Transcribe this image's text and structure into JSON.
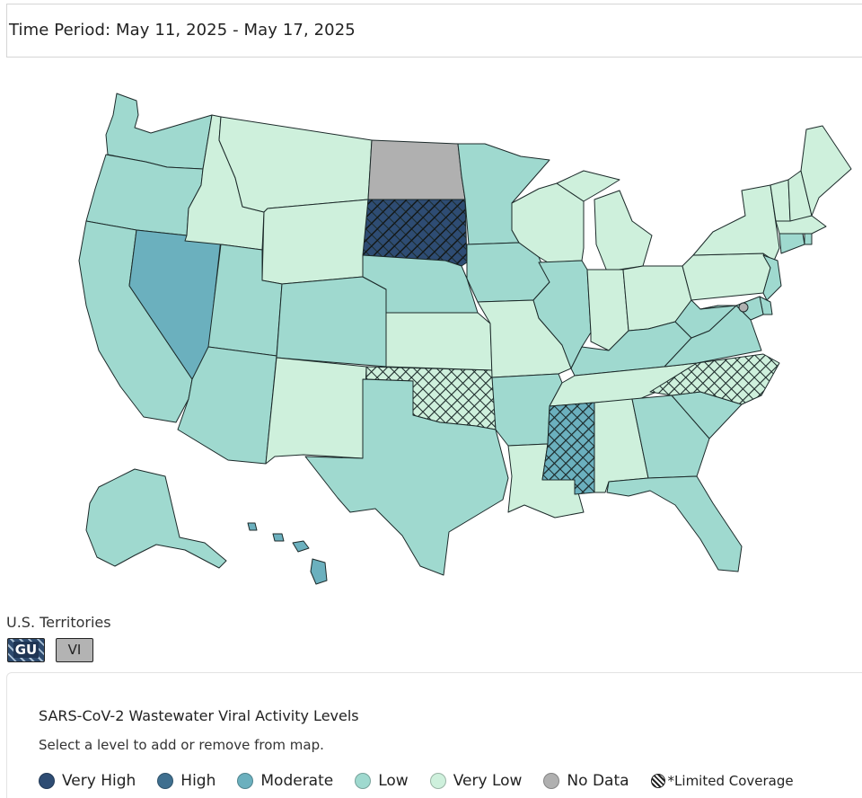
{
  "time_period": "Time Period: May 11, 2025 - May 17, 2025",
  "territories": {
    "label": "U.S. Territories",
    "items": [
      {
        "code": "GU",
        "level": "Very High",
        "limited_coverage": true
      },
      {
        "code": "VI",
        "level": "No Data",
        "limited_coverage": false
      }
    ]
  },
  "legend": {
    "title": "SARS-CoV-2 Wastewater Viral Activity Levels",
    "subtitle": "Select a level to add or remove from map.",
    "levels": [
      {
        "label": "Very High",
        "color": "#2e4c73"
      },
      {
        "label": "High",
        "color": "#3f6f8f"
      },
      {
        "label": "Moderate",
        "color": "#6bb0be"
      },
      {
        "label": "Low",
        "color": "#9fd9cf"
      },
      {
        "label": "Very Low",
        "color": "#cef0dc"
      },
      {
        "label": "No Data",
        "color": "#b0b0b0"
      }
    ],
    "limited_coverage_label": "*Limited Coverage"
  },
  "state_levels": {
    "WA": "Low",
    "OR": "Low",
    "CA": "Low",
    "NV": "Moderate",
    "ID": "Very Low",
    "MT": "Very Low",
    "WY": "Very Low",
    "UT": "Low",
    "AZ": "Low",
    "CO": "Low",
    "NM": "Very Low",
    "ND": "No Data",
    "SD": "Very High",
    "NE": "Low",
    "KS": "Very Low",
    "OK": "Very Low",
    "TX": "Low",
    "MN": "Low",
    "IA": "Low",
    "MO": "Very Low",
    "AR": "Low",
    "LA": "Very Low",
    "WI": "Very Low",
    "IL": "Low",
    "MI": "Very Low",
    "IN": "Very Low",
    "OH": "Very Low",
    "KY": "Low",
    "TN": "Very Low",
    "MS": "High",
    "AL": "Very Low",
    "GA": "Low",
    "FL": "Low",
    "SC": "Low",
    "NC": "Very Low",
    "VA": "Low",
    "WV": "Low",
    "PA": "Very Low",
    "NY": "Very Low",
    "VT": "Very Low",
    "NH": "Very Low",
    "ME": "Very Low",
    "MA": "Very Low",
    "RI": "Low",
    "CT": "Low",
    "NJ": "Low",
    "DE": "Low",
    "MD": "Low",
    "DC": "No Data",
    "AK": "Low",
    "HI": "Moderate"
  },
  "limited_coverage_states": [
    "SD",
    "OK",
    "MS",
    "NC",
    "GU"
  ]
}
